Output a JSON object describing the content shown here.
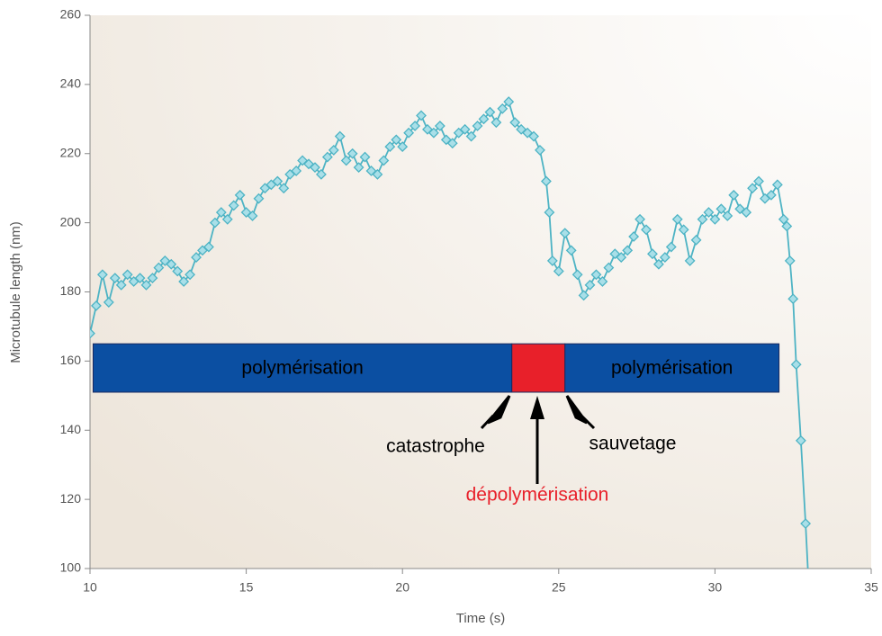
{
  "chart_data": {
    "type": "line",
    "x_label": "Time (s)",
    "y_label": "Microtubule length (nm)",
    "xlim": [
      10,
      35
    ],
    "xticks": [
      10,
      15,
      20,
      25,
      30,
      35
    ],
    "ylim": [
      100,
      260
    ],
    "yticks": [
      100,
      120,
      140,
      160,
      180,
      200,
      220,
      240,
      260
    ],
    "marker": "diamond",
    "series": [
      {
        "color": "#4db3c4",
        "x": [
          10.0,
          10.2,
          10.4,
          10.6,
          10.8,
          11.0,
          11.2,
          11.4,
          11.6,
          11.8,
          12.0,
          12.2,
          12.4,
          12.6,
          12.8,
          13.0,
          13.2,
          13.4,
          13.6,
          13.8,
          14.0,
          14.2,
          14.4,
          14.6,
          14.8,
          15.0,
          15.2,
          15.4,
          15.6,
          15.8,
          16.0,
          16.2,
          16.4,
          16.6,
          16.8,
          17.0,
          17.2,
          17.4,
          17.6,
          17.8,
          18.0,
          18.2,
          18.4,
          18.6,
          18.8,
          19.0,
          19.2,
          19.4,
          19.6,
          19.8,
          20.0,
          20.2,
          20.4,
          20.6,
          20.8,
          21.0,
          21.2,
          21.4,
          21.6,
          21.8,
          22.0,
          22.2,
          22.4,
          22.6,
          22.8,
          23.0,
          23.2,
          23.4,
          23.6,
          23.8,
          24.0,
          24.2,
          24.4,
          24.6,
          24.7,
          24.8,
          25.0,
          25.2,
          25.4,
          25.6,
          25.8,
          26.0,
          26.2,
          26.4,
          26.6,
          26.8,
          27.0,
          27.2,
          27.4,
          27.6,
          27.8,
          28.0,
          28.2,
          28.4,
          28.6,
          28.8,
          29.0,
          29.2,
          29.4,
          29.6,
          29.8,
          30.0,
          30.2,
          30.4,
          30.6,
          30.8,
          31.0,
          31.2,
          31.4,
          31.6,
          31.8,
          32.0,
          32.2,
          32.3,
          32.4,
          32.5,
          32.6,
          32.75,
          32.9,
          33.0
        ],
        "values": [
          168,
          176,
          185,
          177,
          184,
          182,
          185,
          183,
          184,
          182,
          184,
          187,
          189,
          188,
          186,
          183,
          185,
          190,
          192,
          193,
          200,
          203,
          201,
          205,
          208,
          203,
          202,
          207,
          210,
          211,
          212,
          210,
          214,
          215,
          218,
          217,
          216,
          214,
          219,
          221,
          225,
          218,
          220,
          216,
          219,
          215,
          214,
          218,
          222,
          224,
          222,
          226,
          228,
          231,
          227,
          226,
          228,
          224,
          223,
          226,
          227,
          225,
          228,
          230,
          232,
          229,
          233,
          235,
          229,
          227,
          226,
          225,
          221,
          212,
          203,
          189,
          186,
          197,
          192,
          185,
          179,
          182,
          185,
          183,
          187,
          191,
          190,
          192,
          196,
          201,
          198,
          191,
          188,
          190,
          193,
          201,
          198,
          189,
          195,
          201,
          203,
          201,
          204,
          202,
          208,
          204,
          203,
          210,
          212,
          207,
          208,
          211,
          201,
          199,
          189,
          178,
          159,
          137,
          113,
          95
        ]
      }
    ],
    "bands": [
      {
        "label": "polymérisation",
        "x": [
          10.1,
          23.5
        ],
        "y": [
          151,
          165
        ],
        "color": "#0b4fa2"
      },
      {
        "x": [
          23.5,
          25.2
        ],
        "y": [
          151,
          165
        ],
        "color": "#e8202a"
      },
      {
        "label": "polymérisation",
        "x": [
          25.2,
          32.05
        ],
        "y": [
          151,
          165
        ],
        "color": "#0b4fa2"
      }
    ],
    "annotations": [
      {
        "text": "catastrophe",
        "color": "#000000"
      },
      {
        "text": "sauvetage",
        "color": "#000000"
      },
      {
        "text": "dépolymérisation",
        "color": "#e8202a"
      }
    ]
  }
}
